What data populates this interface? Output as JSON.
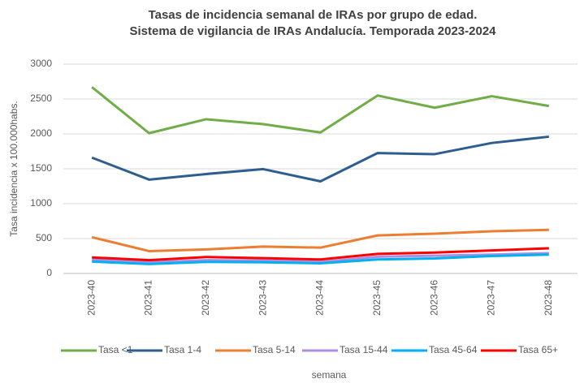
{
  "chart_data": {
    "type": "line",
    "title": [
      "Tasas de incidencia semanal de IRAs por grupo de edad.",
      "Sistema de vigilancia de IRAs Andalucía. Temporada 2023-2024"
    ],
    "x_label": "semana",
    "y_label": "Tasa incidencia x 100.000habs.",
    "categories": [
      "2023-40",
      "2023-41",
      "2023-42",
      "2023-43",
      "2023-44",
      "2023-45",
      "2023-46",
      "2023-47",
      "2023-48"
    ],
    "series": [
      {
        "name": "Tasa <1",
        "color": "#70ad47",
        "values": [
          2670,
          2010,
          2210,
          2140,
          2020,
          2550,
          2375,
          2540,
          2400
        ]
      },
      {
        "name": "Tasa 1-4",
        "color": "#2e5e8f",
        "values": [
          1660,
          1345,
          1425,
          1495,
          1320,
          1725,
          1710,
          1870,
          1960
        ]
      },
      {
        "name": "Tasa 5-14",
        "color": "#ed7d31",
        "values": [
          520,
          320,
          345,
          385,
          370,
          545,
          570,
          605,
          625
        ]
      },
      {
        "name": "Tasa 15-44",
        "color": "#a98ee3",
        "values": [
          200,
          160,
          190,
          185,
          165,
          240,
          255,
          270,
          290
        ]
      },
      {
        "name": "Tasa 45-64",
        "color": "#00b0f0",
        "values": [
          170,
          135,
          165,
          160,
          145,
          200,
          215,
          250,
          270
        ]
      },
      {
        "name": "Tasa 65+",
        "color": "#ff0000",
        "values": [
          230,
          190,
          235,
          220,
          200,
          280,
          300,
          330,
          360
        ]
      }
    ],
    "ylim": [
      0,
      3000
    ],
    "yticks": [
      0,
      500,
      1000,
      1500,
      2000,
      2500,
      3000
    ],
    "grid": true,
    "legend": "bottom"
  }
}
